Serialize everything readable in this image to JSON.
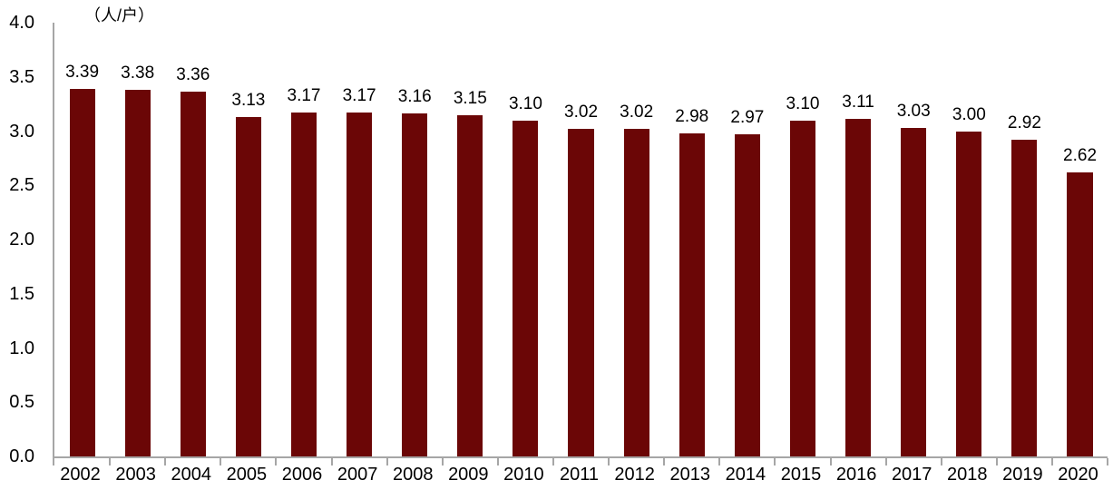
{
  "chart_data": {
    "type": "bar",
    "title": "",
    "xlabel": "",
    "ylabel": "（人/户）",
    "unit_label": "（人/户）",
    "categories": [
      "2002",
      "2003",
      "2004",
      "2005",
      "2006",
      "2007",
      "2008",
      "2009",
      "2010",
      "2011",
      "2012",
      "2013",
      "2014",
      "2015",
      "2016",
      "2017",
      "2018",
      "2019",
      "2020"
    ],
    "values": [
      3.39,
      3.38,
      3.36,
      3.13,
      3.17,
      3.17,
      3.16,
      3.15,
      3.1,
      3.02,
      3.02,
      2.98,
      2.97,
      3.1,
      3.11,
      3.03,
      3.0,
      2.92,
      2.62
    ],
    "value_labels": [
      "3.39",
      "3.38",
      "3.36",
      "3.13",
      "3.17",
      "3.17",
      "3.16",
      "3.15",
      "3.10",
      "3.02",
      "3.02",
      "2.98",
      "2.97",
      "3.10",
      "3.11",
      "3.03",
      "3.00",
      "2.92",
      "2.62"
    ],
    "ylim": [
      0.0,
      4.0
    ],
    "y_ticks": [
      "4.0",
      "3.5",
      "3.0",
      "2.5",
      "2.0",
      "1.5",
      "1.0",
      "0.5",
      "0.0"
    ],
    "grid": false,
    "legend": "none",
    "bar_color": "#6B0606",
    "axis_color": "#A6A6A6",
    "text_color": "#000000"
  }
}
